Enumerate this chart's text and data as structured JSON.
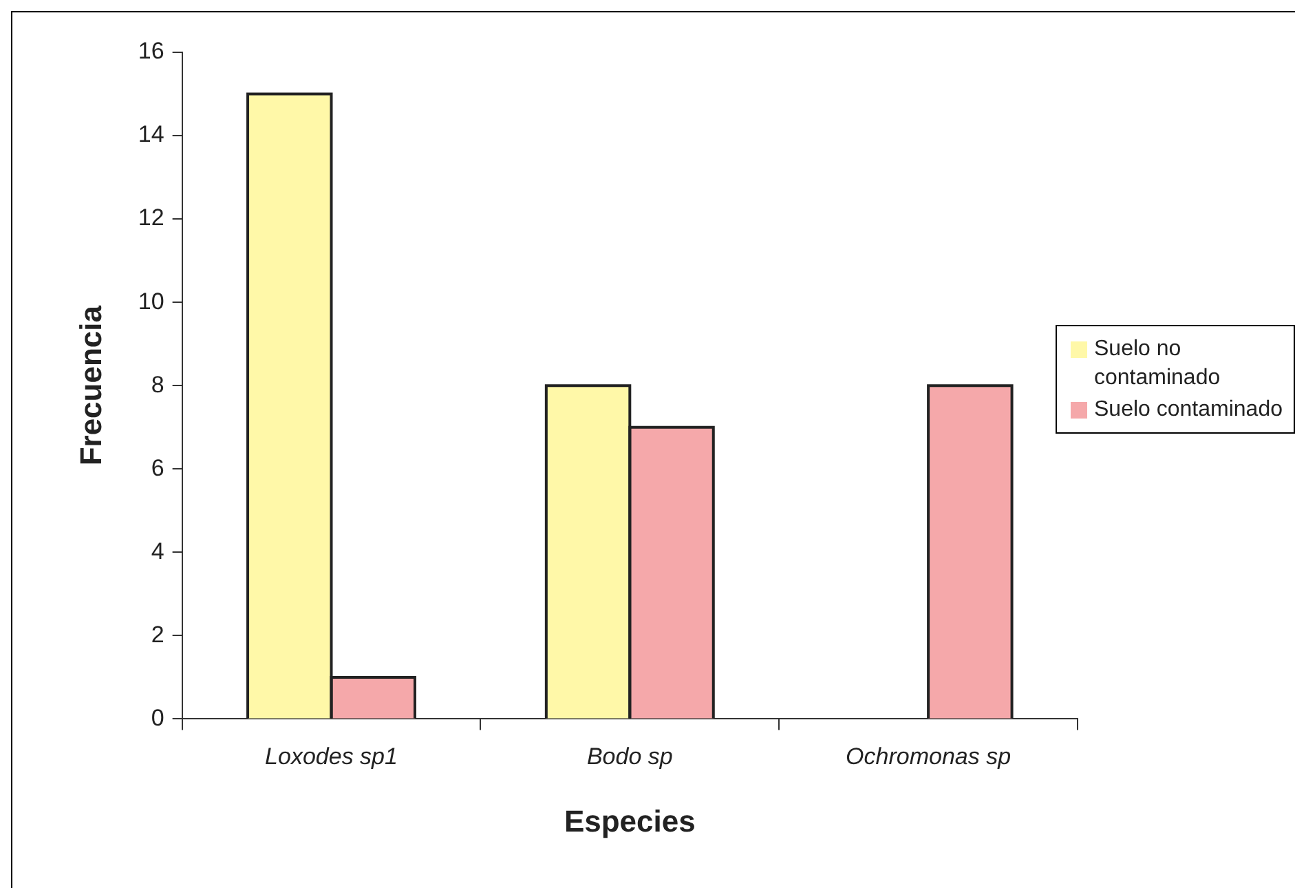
{
  "chart_data": {
    "type": "bar",
    "xlabel": "Especies",
    "ylabel": "Frecuencia",
    "categories": [
      "Loxodes sp1",
      "Bodo sp",
      "Ochromonas sp"
    ],
    "series": [
      {
        "name": "Suelo no contaminado",
        "color": "#fff8a8",
        "values": [
          15,
          8,
          0
        ]
      },
      {
        "name": "Suelo contaminado",
        "color": "#f5a8aa",
        "values": [
          1,
          7,
          8
        ]
      }
    ],
    "ylim": [
      0,
      16
    ],
    "yticks": [
      0,
      2,
      4,
      6,
      8,
      10,
      12,
      14,
      16
    ],
    "grid": false,
    "legend": "right"
  }
}
